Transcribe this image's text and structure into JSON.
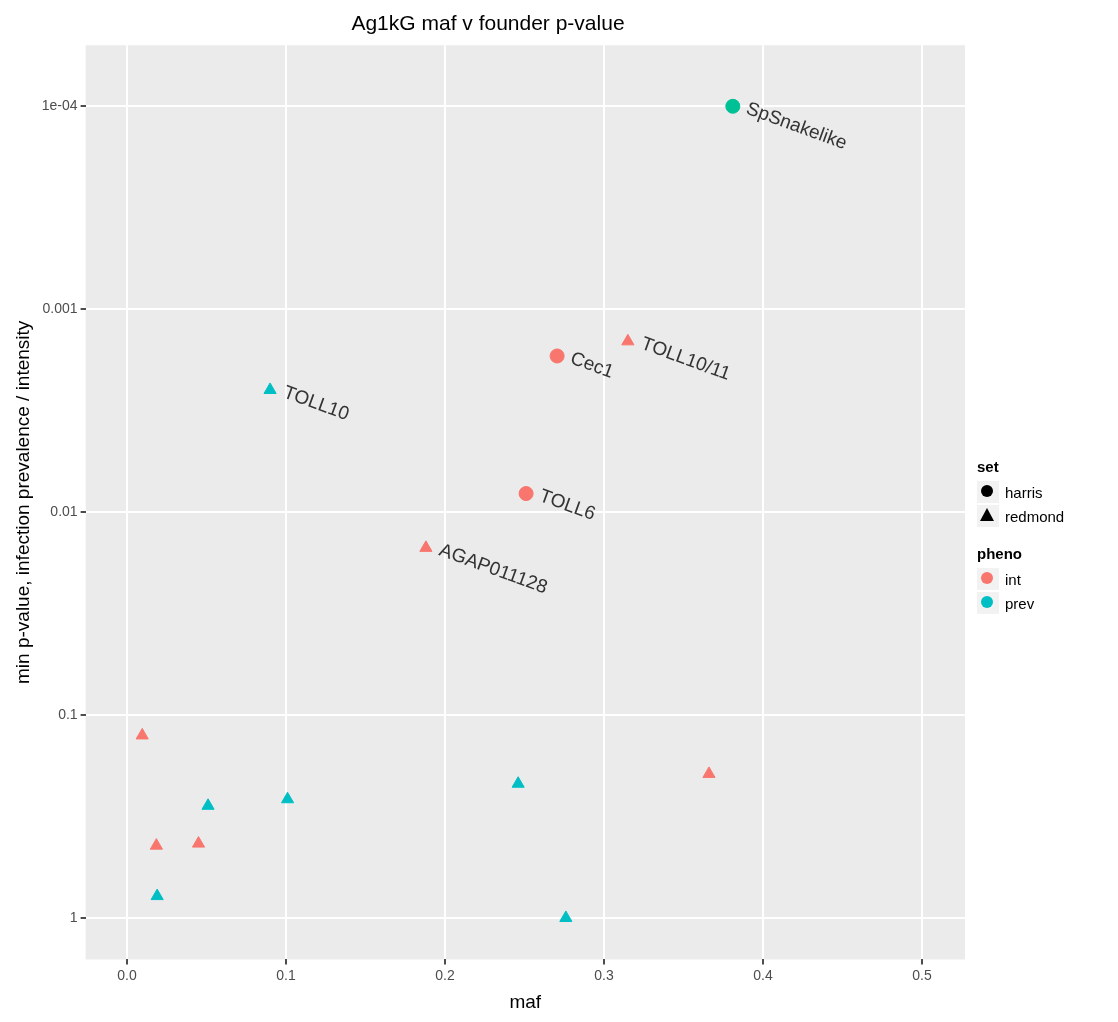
{
  "chart_data": {
    "type": "scatter",
    "title": "Ag1kG maf v founder p-value",
    "xlabel": "maf",
    "ylabel": "min p-value, infection prevalence / intensity",
    "legend_title": [
      "set",
      "pheno"
    ],
    "legend": "right",
    "grid": true,
    "log": "y",
    "xlim": [
      -0.026,
      0.527
    ],
    "xticks": [
      {
        "value": 0,
        "label": "0.0"
      },
      0.1,
      0.2,
      0.3,
      0.4,
      0.5
    ],
    "ylim": [
      1.6,
      5e-05
    ],
    "yticks": [
      {
        "value": 0.0001,
        "label": "1e-04"
      },
      0.001,
      0.01,
      0.1,
      1
    ],
    "series": [
      {
        "name": "harris",
        "marker": "circle",
        "x": [
          0.381,
          0.2705,
          0.251
        ],
        "values": [
          0.0001,
          0.0017,
          0.0081
        ],
        "colors": [
          "#00c196",
          "#f8766d",
          "#f8766d"
        ]
      },
      {
        "name": "redmond",
        "marker": "triangle",
        "x": [
          0.315,
          0.09,
          0.188,
          0.0096,
          0.0185,
          0.045,
          0.019,
          0.051,
          0.101,
          0.246,
          0.276,
          0.366
        ],
        "values": [
          0.00144,
          0.0025,
          0.015,
          0.126,
          0.44,
          0.43,
          0.78,
          0.28,
          0.26,
          0.218,
          1,
          0.195
        ],
        "colors": [
          "#f8766d",
          "#00bfc4",
          "#f8766d",
          "#f8766d",
          "#f8766d",
          "#f8766d",
          "#00bfc4",
          "#00bfc4",
          "#00bfc4",
          "#00bfc4",
          "#00bfc4",
          "#f8766d"
        ]
      },
      {
        "name": "int",
        "color": "#f8766d"
      },
      {
        "name": "prev",
        "color": "#00bfc4"
      }
    ],
    "annotations": [
      {
        "text": "SpSnakelike",
        "x": 0.381,
        "y": 0.0001
      },
      {
        "text": "Cec1",
        "x": 0.2705,
        "y": 0.0017
      },
      {
        "text": "TOLL10/11",
        "x": 0.315,
        "y": 0.00144
      },
      {
        "text": "TOLL10",
        "x": 0.09,
        "y": 0.0025
      },
      {
        "text": "TOLL6",
        "x": 0.251,
        "y": 0.0081
      },
      {
        "text": "AGAP011128",
        "x": 0.188,
        "y": 0.015
      }
    ]
  }
}
